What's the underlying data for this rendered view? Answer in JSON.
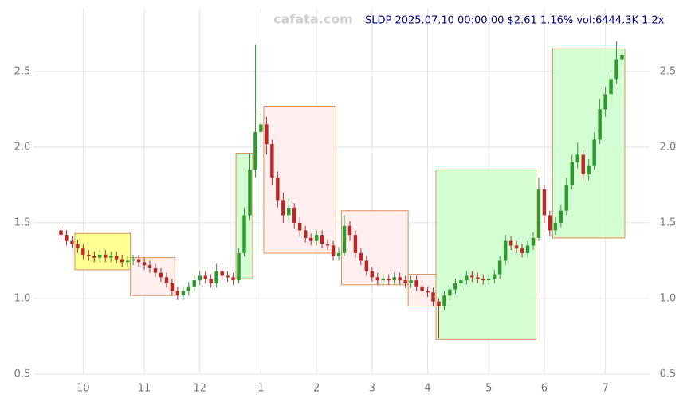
{
  "chart_data": {
    "type": "candlestick",
    "watermark": "cafata.com",
    "title": "SLDP 2025.07.10 00:00:00 $2.61 1.16% vol:6444.3K 1.2x",
    "categories": [
      null,
      null,
      null,
      null,
      "10",
      null,
      null,
      null,
      null,
      null,
      null,
      null,
      null,
      null,
      null,
      "11",
      null,
      null,
      null,
      null,
      null,
      null,
      null,
      null,
      null,
      "12",
      null,
      null,
      null,
      null,
      null,
      null,
      null,
      null,
      null,
      null,
      "1",
      null,
      null,
      null,
      null,
      null,
      null,
      null,
      null,
      null,
      "2",
      null,
      null,
      null,
      null,
      null,
      null,
      null,
      null,
      null,
      "3",
      null,
      null,
      null,
      null,
      null,
      null,
      null,
      null,
      null,
      "4",
      null,
      null,
      null,
      null,
      null,
      null,
      null,
      null,
      null,
      null,
      "5",
      null,
      null,
      null,
      null,
      null,
      null,
      null,
      null,
      null,
      "6",
      null,
      null,
      null,
      null,
      null,
      null,
      null,
      null,
      null,
      null,
      "7",
      null,
      null,
      null
    ],
    "open": [
      1.45,
      1.42,
      1.38,
      1.36,
      1.33,
      1.29,
      1.28,
      1.27,
      1.29,
      1.27,
      1.28,
      1.26,
      1.24,
      1.25,
      1.26,
      1.24,
      1.22,
      1.2,
      1.17,
      1.14,
      1.1,
      1.05,
      1.02,
      1.05,
      1.08,
      1.12,
      1.15,
      1.13,
      1.1,
      1.18,
      1.15,
      1.14,
      1.12,
      1.3,
      1.55,
      1.85,
      2.1,
      2.15,
      2.02,
      1.8,
      1.65,
      1.55,
      1.6,
      1.5,
      1.45,
      1.4,
      1.38,
      1.42,
      1.36,
      1.35,
      1.28,
      1.3,
      1.48,
      1.42,
      1.3,
      1.25,
      1.18,
      1.14,
      1.12,
      1.13,
      1.12,
      1.14,
      1.12,
      1.1,
      1.12,
      1.08,
      1.05,
      1.04,
      0.98,
      0.95,
      1.02,
      1.06,
      1.1,
      1.12,
      1.15,
      1.14,
      1.13,
      1.12,
      1.13,
      1.16,
      1.25,
      1.38,
      1.35,
      1.33,
      1.3,
      1.35,
      1.4,
      1.72,
      1.55,
      1.45,
      1.5,
      1.58,
      1.75,
      1.9,
      1.95,
      1.82,
      1.88,
      2.05,
      2.25,
      2.35,
      2.45,
      2.58
    ],
    "high": [
      1.48,
      1.45,
      1.41,
      1.39,
      1.36,
      1.32,
      1.31,
      1.32,
      1.32,
      1.31,
      1.31,
      1.29,
      1.28,
      1.29,
      1.29,
      1.27,
      1.25,
      1.23,
      1.2,
      1.17,
      1.13,
      1.08,
      1.08,
      1.11,
      1.15,
      1.18,
      1.18,
      1.16,
      1.23,
      1.21,
      1.18,
      1.17,
      1.33,
      1.6,
      1.96,
      2.68,
      2.22,
      2.2,
      2.05,
      1.84,
      1.7,
      1.66,
      1.63,
      1.54,
      1.48,
      1.43,
      1.45,
      1.45,
      1.39,
      1.38,
      1.34,
      1.55,
      1.51,
      1.45,
      1.33,
      1.28,
      1.21,
      1.17,
      1.16,
      1.16,
      1.17,
      1.17,
      1.15,
      1.15,
      1.15,
      1.11,
      1.08,
      1.07,
      1.0,
      1.05,
      1.09,
      1.13,
      1.15,
      1.18,
      1.18,
      1.17,
      1.16,
      1.16,
      1.19,
      1.28,
      1.42,
      1.41,
      1.38,
      1.36,
      1.38,
      1.44,
      1.8,
      1.75,
      1.58,
      1.54,
      1.62,
      1.8,
      1.95,
      2.03,
      1.98,
      1.92,
      2.1,
      2.32,
      2.4,
      2.5,
      2.7,
      2.64
    ],
    "low": [
      1.39,
      1.35,
      1.33,
      1.3,
      1.26,
      1.25,
      1.24,
      1.24,
      1.24,
      1.24,
      1.23,
      1.21,
      1.21,
      1.22,
      1.21,
      1.19,
      1.17,
      1.14,
      1.11,
      1.07,
      1.02,
      0.99,
      0.99,
      1.02,
      1.05,
      1.09,
      1.1,
      1.07,
      1.07,
      1.12,
      1.11,
      1.09,
      1.1,
      1.28,
      1.52,
      1.8,
      2.0,
      1.95,
      1.75,
      1.6,
      1.5,
      1.52,
      1.46,
      1.41,
      1.37,
      1.35,
      1.35,
      1.33,
      1.32,
      1.25,
      1.25,
      1.28,
      1.38,
      1.27,
      1.22,
      1.15,
      1.11,
      1.09,
      1.09,
      1.09,
      1.09,
      1.09,
      1.07,
      1.07,
      1.05,
      1.02,
      1.01,
      0.95,
      0.74,
      0.92,
      0.99,
      1.03,
      1.07,
      1.09,
      1.11,
      1.1,
      1.09,
      1.09,
      1.1,
      1.13,
      1.22,
      1.32,
      1.3,
      1.27,
      1.27,
      1.32,
      1.38,
      1.5,
      1.41,
      1.42,
      1.47,
      1.55,
      1.72,
      1.86,
      1.78,
      1.78,
      1.85,
      2.02,
      2.2,
      2.3,
      2.42,
      2.55
    ],
    "close": [
      1.42,
      1.38,
      1.36,
      1.33,
      1.29,
      1.28,
      1.27,
      1.29,
      1.27,
      1.28,
      1.26,
      1.24,
      1.25,
      1.26,
      1.24,
      1.22,
      1.2,
      1.17,
      1.14,
      1.1,
      1.05,
      1.02,
      1.05,
      1.08,
      1.12,
      1.15,
      1.13,
      1.1,
      1.18,
      1.15,
      1.14,
      1.12,
      1.3,
      1.55,
      1.85,
      2.1,
      2.15,
      2.02,
      1.8,
      1.65,
      1.55,
      1.6,
      1.5,
      1.45,
      1.4,
      1.38,
      1.42,
      1.36,
      1.35,
      1.28,
      1.3,
      1.48,
      1.42,
      1.3,
      1.25,
      1.18,
      1.14,
      1.12,
      1.13,
      1.12,
      1.14,
      1.12,
      1.1,
      1.12,
      1.08,
      1.05,
      1.04,
      0.98,
      0.95,
      1.02,
      1.06,
      1.1,
      1.12,
      1.15,
      1.14,
      1.13,
      1.12,
      1.13,
      1.16,
      1.25,
      1.38,
      1.35,
      1.33,
      1.3,
      1.35,
      1.4,
      1.72,
      1.55,
      1.45,
      1.5,
      1.58,
      1.75,
      1.9,
      1.95,
      1.82,
      1.88,
      2.05,
      2.25,
      2.35,
      2.45,
      2.58,
      2.61
    ],
    "up_color": "#2e9a2e",
    "down_color": "#b82828",
    "ylim": [
      0.5,
      2.92
    ],
    "yticks": [
      0.5,
      {
        "value": 1,
        "label": "1.0"
      },
      1.5,
      {
        "value": 2,
        "label": "2.0"
      },
      2.5
    ],
    "grid": true,
    "boxes": [
      {
        "start": 3,
        "end": 12,
        "low": 1.19,
        "high": 1.43,
        "color": "#ffff80"
      },
      {
        "start": 13,
        "end": 20,
        "low": 1.02,
        "high": 1.27,
        "color": "#ffecec"
      },
      {
        "start": 32,
        "end": 34,
        "low": 1.13,
        "high": 1.96,
        "color": "#ccffcc"
      },
      {
        "start": 37,
        "end": 49,
        "low": 1.3,
        "high": 2.27,
        "color": "#ffecec"
      },
      {
        "start": 51,
        "end": 62,
        "low": 1.09,
        "high": 1.58,
        "color": "#ffecec"
      },
      {
        "start": 63,
        "end": 67,
        "low": 0.95,
        "high": 1.16,
        "color": "#ffecec"
      },
      {
        "start": 68,
        "end": 85,
        "low": 0.73,
        "high": 1.85,
        "color": "#ccffcc"
      },
      {
        "start": 89,
        "end": 101,
        "low": 1.4,
        "high": 2.65,
        "color": "#ccffcc"
      }
    ]
  }
}
